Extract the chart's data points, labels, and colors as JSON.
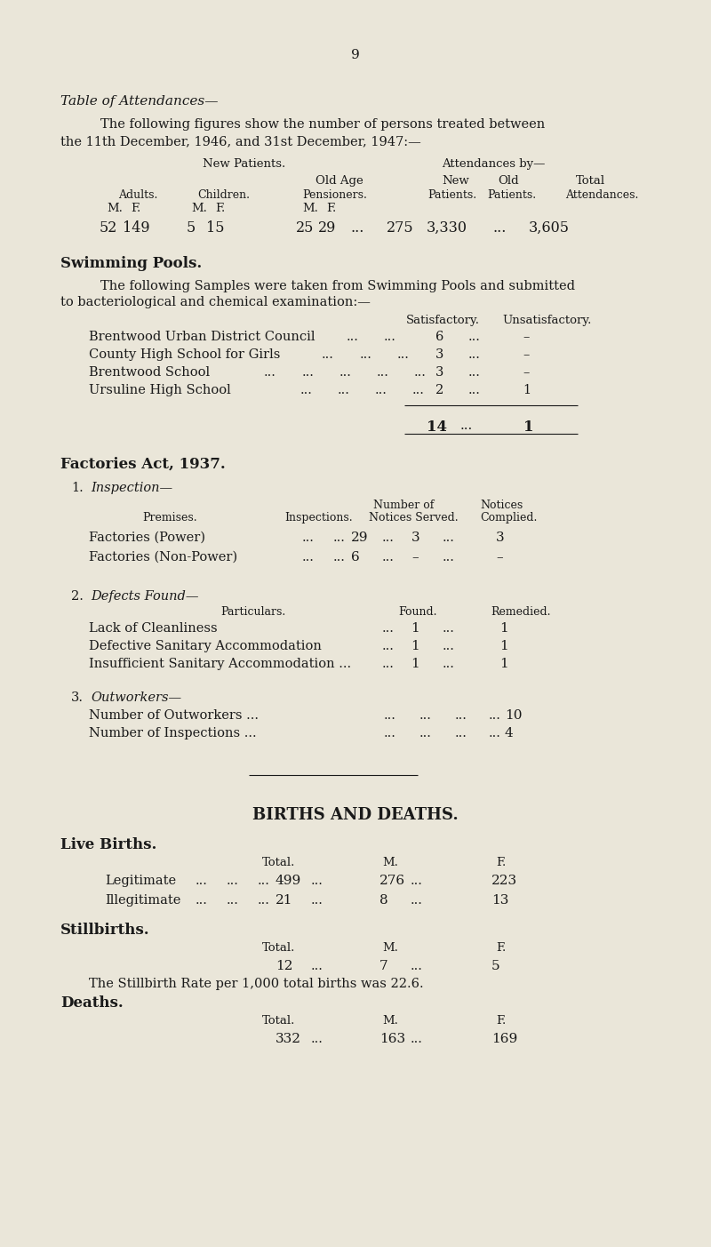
{
  "bg_color": "#eae6d9",
  "text_color": "#1a1a1a",
  "page_number": "9",
  "section1_title_italic": "Table of Attendances—",
  "section2_title": "Swimming Pools.",
  "section2_intro1": "The following Samples were taken from Swimming Pools and submitted",
  "section2_intro2": "to bacteriological and chemical examination:—",
  "pool_hdr1": "Satisfactory.",
  "pool_hdr2": "Unsatisfactory.",
  "pool_rows": [
    [
      "Brentwood Urban District Council",
      "6",
      "–"
    ],
    [
      "County High School for Girls",
      "3",
      "–"
    ],
    [
      "Brentwood School",
      "3",
      "–"
    ],
    [
      "Ursuline High School",
      "2",
      "1"
    ]
  ],
  "pool_total_sat": "14",
  "pool_total_unsat": "1",
  "section3_title": "Factories Act, 1937.",
  "fact_sub1_rows": [
    [
      "Factories (Power)",
      "29",
      "3",
      "3"
    ],
    [
      "Factories (Non-Power)",
      "6",
      "–",
      "–"
    ]
  ],
  "fact_sub2_rows": [
    [
      "Lack of Cleanliness",
      "1",
      "1"
    ],
    [
      "Defective Sanitary Accommodation",
      "1",
      "1"
    ],
    [
      "Insufficient Sanitary Accommodation ...",
      "1",
      "1"
    ]
  ],
  "fact_sub3_rows": [
    [
      "Number of Outworkers ...",
      "10"
    ],
    [
      "Number of Inspections ...",
      "4"
    ]
  ],
  "births_title": "BIRTHS AND DEATHS.",
  "live_births_title": "Live Births.",
  "live_births_rows": [
    [
      "Legitimate",
      "499",
      "276",
      "223"
    ],
    [
      "Illegitimate",
      "21",
      "8",
      "13"
    ]
  ],
  "stillbirths_title": "Stillbirths.",
  "stillbirths_data": [
    "12",
    "7",
    "5"
  ],
  "stillbirth_rate_text": "The Stillbirth Rate per 1,000 total births was 22.6.",
  "deaths_title": "Deaths.",
  "deaths_data": [
    "332",
    "163",
    "169"
  ]
}
